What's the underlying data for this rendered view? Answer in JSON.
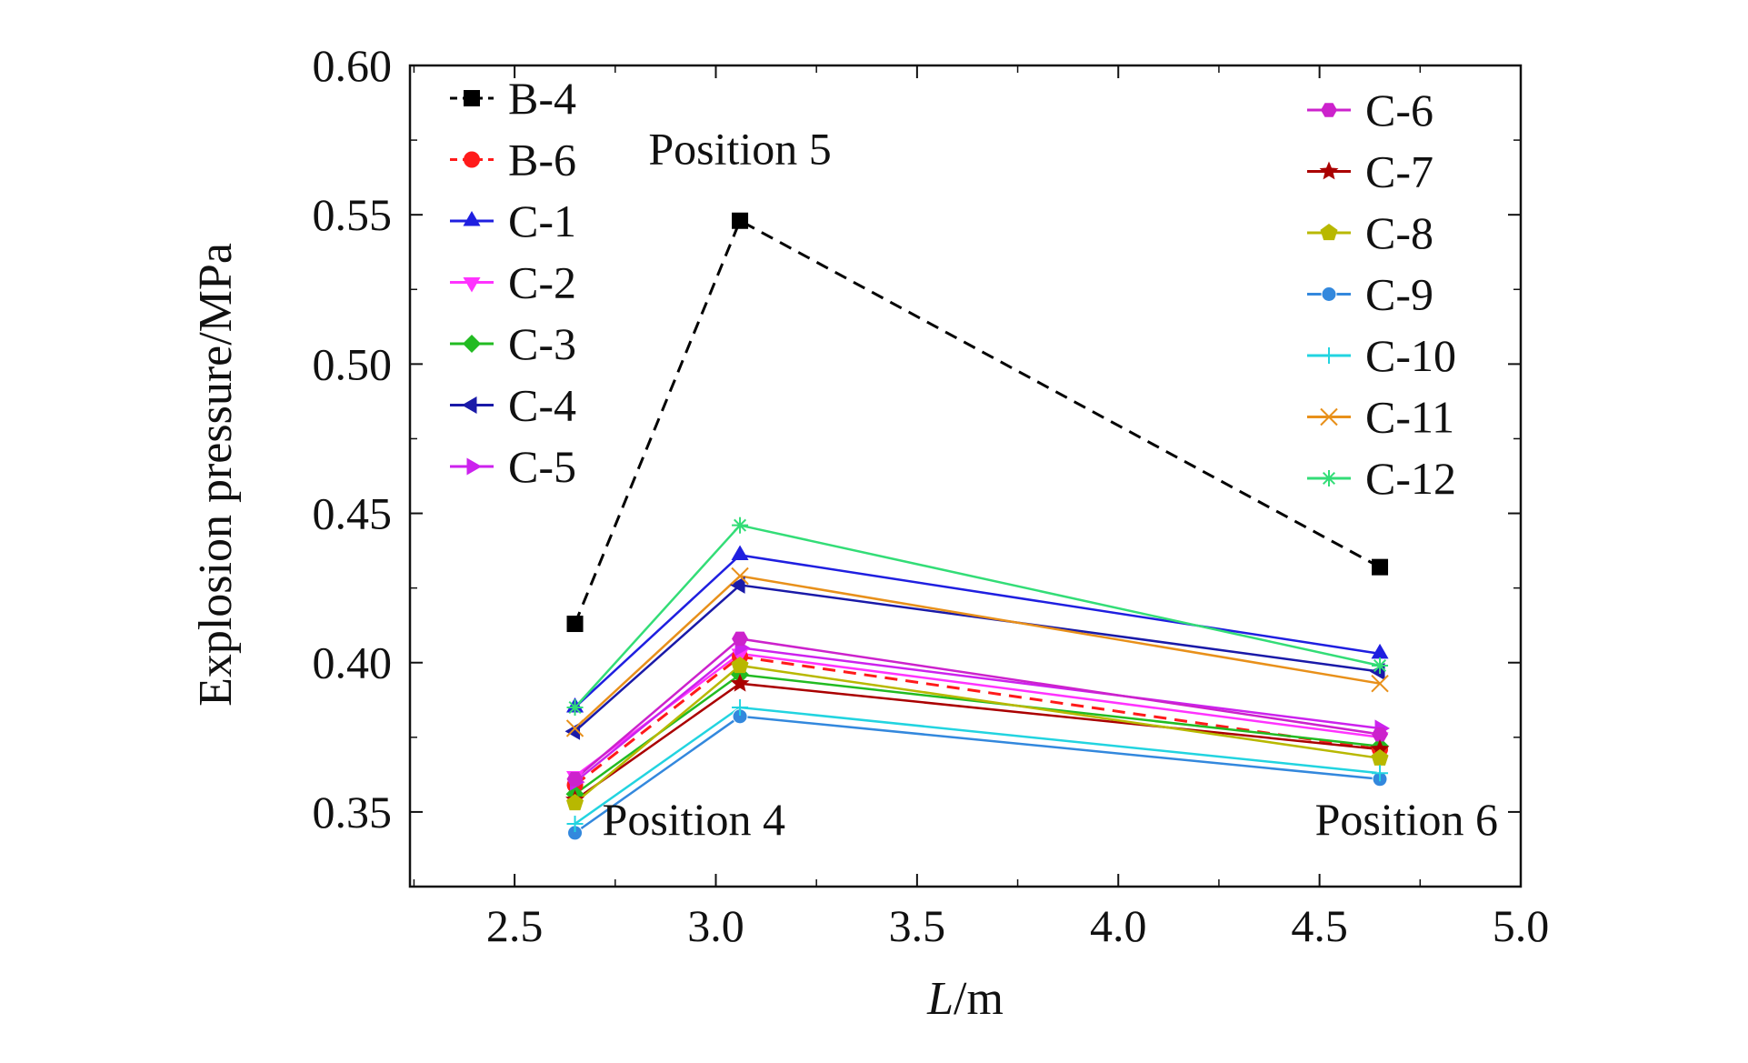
{
  "chart_data": {
    "type": "line",
    "title": "",
    "xlabel": "L/m",
    "xlabel_parts": {
      "italic": "L",
      "rest": "/m"
    },
    "ylabel": "Explosion pressure/MPa",
    "xlim": [
      2.24,
      5.0
    ],
    "ylim": [
      0.325,
      0.6
    ],
    "x": [
      2.65,
      3.06,
      4.65
    ],
    "x_ticks": [
      "2.5",
      "3.0",
      "3.5",
      "4.0",
      "4.5",
      "5.0"
    ],
    "y_ticks": [
      "0.35",
      "0.40",
      "0.45",
      "0.50",
      "0.55",
      "0.60"
    ],
    "grid": false,
    "legend_placement": "two columns inside plot: top-left and top-right",
    "annotations": [
      {
        "text": "Position 4",
        "x": 2.65,
        "y": 0.35
      },
      {
        "text": "Position 5",
        "x": 3.06,
        "y": 0.567
      },
      {
        "text": "Position 6",
        "x": 4.65,
        "y": 0.35
      }
    ],
    "series": [
      {
        "name": "B-4",
        "values": [
          0.413,
          0.548,
          0.432
        ],
        "color": "#000000",
        "marker": "square",
        "dashed": true
      },
      {
        "name": "B-6",
        "values": [
          0.359,
          0.402,
          0.371
        ],
        "color": "#ff1a1a",
        "marker": "circle",
        "dashed": true
      },
      {
        "name": "C-1",
        "values": [
          0.385,
          0.436,
          0.403
        ],
        "color": "#1f1fe0",
        "marker": "triangle-up",
        "dashed": false
      },
      {
        "name": "C-2",
        "values": [
          0.362,
          0.403,
          0.375
        ],
        "color": "#ff33ff",
        "marker": "triangle-down",
        "dashed": false
      },
      {
        "name": "C-3",
        "values": [
          0.356,
          0.396,
          0.372
        ],
        "color": "#22bb22",
        "marker": "diamond",
        "dashed": false
      },
      {
        "name": "C-4",
        "values": [
          0.377,
          0.426,
          0.397
        ],
        "color": "#1a1aa8",
        "marker": "triangle-left",
        "dashed": false
      },
      {
        "name": "C-5",
        "values": [
          0.36,
          0.405,
          0.378
        ],
        "color": "#cc22ee",
        "marker": "triangle-right",
        "dashed": false
      },
      {
        "name": "C-6",
        "values": [
          0.361,
          0.408,
          0.376
        ],
        "color": "#cc22cc",
        "marker": "hexagon",
        "dashed": false
      },
      {
        "name": "C-7",
        "values": [
          0.354,
          0.393,
          0.371
        ],
        "color": "#aa0000",
        "marker": "star",
        "dashed": false
      },
      {
        "name": "C-8",
        "values": [
          0.353,
          0.399,
          0.368
        ],
        "color": "#b8b800",
        "marker": "pentagon",
        "dashed": false
      },
      {
        "name": "C-9",
        "values": [
          0.343,
          0.382,
          0.361
        ],
        "color": "#3388dd",
        "marker": "circle-small",
        "dashed": false
      },
      {
        "name": "C-10",
        "values": [
          0.346,
          0.385,
          0.363
        ],
        "color": "#22d4e0",
        "marker": "plus",
        "dashed": false
      },
      {
        "name": "C-11",
        "values": [
          0.378,
          0.429,
          0.393
        ],
        "color": "#e8901a",
        "marker": "x",
        "dashed": false
      },
      {
        "name": "C-12",
        "values": [
          0.385,
          0.446,
          0.399
        ],
        "color": "#33dd77",
        "marker": "asterisk",
        "dashed": false
      }
    ]
  }
}
